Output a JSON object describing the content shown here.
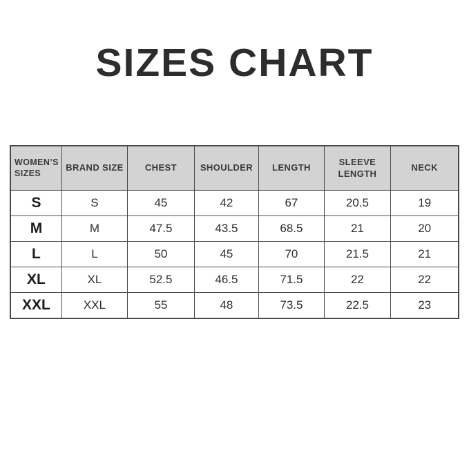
{
  "page": {
    "background": "#ffffff"
  },
  "colors": {
    "header_bg": "#d3d3d3",
    "border": "#4a4a4a",
    "title_text": "#2d2d2d",
    "cell_text": "#2e2e2e"
  },
  "chart_data": {
    "type": "table",
    "title": "SIZES CHART",
    "columns": [
      "WOMEN’S SIZES",
      "BRAND SIZE",
      "CHEST",
      "SHOULDER",
      "LENGTH",
      "SLEEVE LENGTH",
      "NECK"
    ],
    "rows": [
      [
        "S",
        "S",
        "45",
        "42",
        "67",
        "20.5",
        "19"
      ],
      [
        "M",
        "M",
        "47.5",
        "43.5",
        "68.5",
        "21",
        "20"
      ],
      [
        "L",
        "L",
        "50",
        "45",
        "70",
        "21.5",
        "21"
      ],
      [
        "XL",
        "XL",
        "52.5",
        "46.5",
        "71.5",
        "22",
        "22"
      ],
      [
        "XXL",
        "XXL",
        "55",
        "48",
        "73.5",
        "22.5",
        "23"
      ]
    ]
  }
}
